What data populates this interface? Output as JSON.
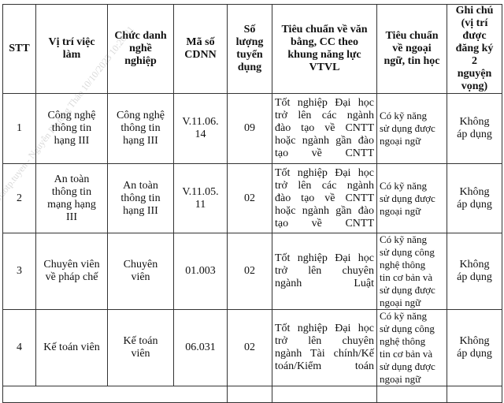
{
  "headers": [
    "STT",
    "Vị trí việc\nlàm",
    "Chức danh\nnghề\nnghiệp",
    "Mã số\nCDNN",
    "Số\nlượng\ntuyển\ndụng",
    "Tiêu chuẩn về văn\nbằng, CC theo\nkhung năng lực\nVTVL",
    "Tiêu chuẩn\nvề ngoại\nngữ, tin học",
    "Ghi chú\n(vị trí\nđược\nđăng ký\n2\nnguyện\nvọng)"
  ],
  "rows": [
    {
      "stt": "1",
      "position": "Công nghệ\nthông tin\nhạng III",
      "title": "Công nghệ\nthông tin\nhạng III",
      "code": "V.11.06.\n14",
      "quantity": "09",
      "degree": "Tốt nghiệp Đại học\ntrở lên các ngành\nđào tạo về CNTT\nhoặc ngành gần đào\ntạo về CNTT",
      "skills": "Có kỹ năng\nsử dụng được\nngoại ngữ",
      "note": "Không\náp dụng"
    },
    {
      "stt": "2",
      "position": "An toàn\nthông tin\nmạng hạng\nIII",
      "title": "An toàn\nthông tin\nhạng III",
      "code": "V.11.05.\n11",
      "quantity": "02",
      "degree": "Tốt nghiệp Đại học\ntrở lên các ngành\nđào tạo về CNTT\nhoặc ngành gần đào\ntạo về CNTT",
      "skills": "Có kỹ năng\nsử dụng được\nngoại ngữ",
      "note": "Không\náp dụng"
    },
    {
      "stt": "3",
      "position": "Chuyên viên\nvề pháp chế",
      "title": "Chuyên\nviên",
      "code": "01.003",
      "quantity": "02",
      "degree": "Tốt nghiệp Đại học\ntrở lên chuyên\nngành Luật",
      "skills": "Có kỹ năng\nsử dụng công\nnghệ thông\ntin cơ bản và\nsử dụng được\nngoại ngữ",
      "note": "Không\náp dụng"
    },
    {
      "stt": "4",
      "position": "Kế toán viên",
      "title": "Kế toán\nviên",
      "code": "06.031",
      "quantity": "02",
      "degree": "Tốt nghiệp Đại học\ntrở lên chuyên\nngành Tài chính/Kế\ntoán/Kiểm toán",
      "skills": "Có kỹ năng\nsử dụng công\nnghệ thông\ntin cơ bản và\nsử dụng được\nngoại ngữ",
      "note": "Không\náp dụng"
    }
  ],
  "watermark": "thaotp.tuyen - Nguyễn Phương Thảo 10/10/2023 10:20:31"
}
